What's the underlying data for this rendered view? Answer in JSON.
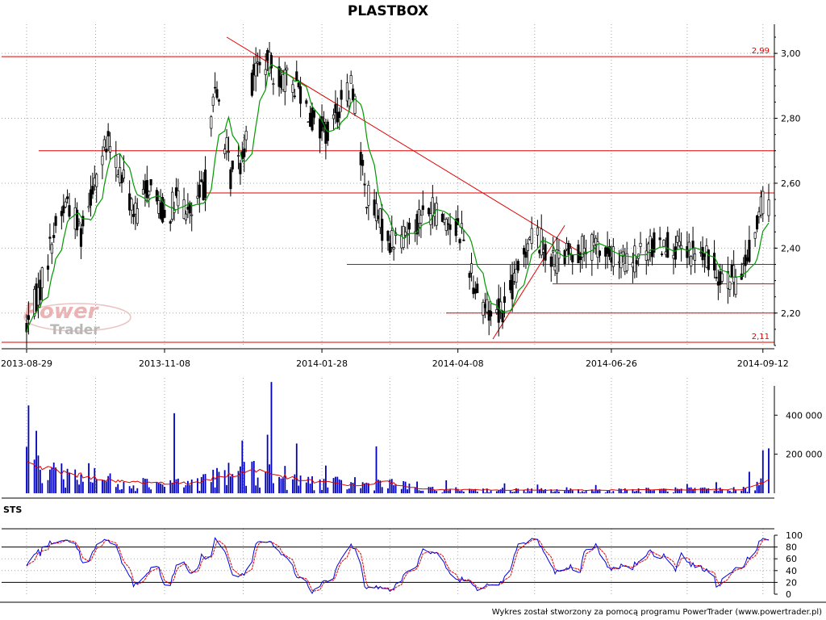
{
  "footer_text": "Wykres został stworzony za pomocą programu PowerTrader (www.powertrader.pl)",
  "logo": {
    "line1": "Power",
    "line2": "Trader",
    "color": "#e05050"
  },
  "colors": {
    "candle": "#000000",
    "sma": "#009900",
    "level": "#e00000",
    "volume": "#0000c0",
    "volume_avg": "#e00000",
    "stoch_k": "#0000e0",
    "stoch_d": "#e00000"
  },
  "chart_data": [
    {
      "type": "candlestick",
      "title": "PLASTBOX",
      "x_tick_labels": [
        "2013-08-29",
        "2013-11-08",
        "2014-01-28",
        "2014-04-08",
        "2014-06-26",
        "2014-09-12"
      ],
      "x_range": [
        "2013-08-29",
        "2014-09-15"
      ],
      "ylim": [
        2.1,
        3.05
      ],
      "y_ticks": [
        2.2,
        2.4,
        2.6,
        2.8,
        3.0
      ],
      "y_tick_labels": [
        "2,20",
        "2,40",
        "2,60",
        "2,80",
        "3,00"
      ],
      "grid": true,
      "horizontal_levels": [
        {
          "value": 2.99,
          "label": "2,99"
        },
        {
          "value": 2.7,
          "label": ""
        },
        {
          "value": 2.57,
          "label": ""
        },
        {
          "value": 2.35,
          "label": ""
        },
        {
          "value": 2.29,
          "label": ""
        },
        {
          "value": 2.2,
          "label": ""
        },
        {
          "value": 2.11,
          "label": "2,11"
        }
      ],
      "trend_lines": [
        {
          "from": [
            "2013-12-10",
            3.05
          ],
          "to": [
            "2014-06-12",
            2.38
          ]
        },
        {
          "from": [
            "2014-04-26",
            2.12
          ],
          "to": [
            "2014-06-02",
            2.47
          ]
        }
      ],
      "anchors": [
        [
          "2013-08-29",
          2.16
        ],
        [
          "2013-09-05",
          2.28
        ],
        [
          "2013-09-12",
          2.45
        ],
        [
          "2013-09-19",
          2.55
        ],
        [
          "2013-09-26",
          2.45
        ],
        [
          "2013-10-03",
          2.62
        ],
        [
          "2013-10-10",
          2.72
        ],
        [
          "2013-10-17",
          2.62
        ],
        [
          "2013-10-24",
          2.5
        ],
        [
          "2013-10-31",
          2.6
        ],
        [
          "2013-11-08",
          2.5
        ],
        [
          "2013-11-15",
          2.55
        ],
        [
          "2013-11-22",
          2.5
        ],
        [
          "2013-11-29",
          2.6
        ],
        [
          "2013-12-03",
          2.88
        ],
        [
          "2013-12-06",
          2.85
        ],
        [
          "2013-12-12",
          2.62
        ],
        [
          "2013-12-18",
          2.68
        ],
        [
          "2013-12-24",
          2.95
        ],
        [
          "2013-12-30",
          2.97
        ],
        [
          "2014-01-08",
          2.92
        ],
        [
          "2014-01-16",
          2.9
        ],
        [
          "2014-01-24",
          2.78
        ],
        [
          "2014-01-31",
          2.75
        ],
        [
          "2014-02-07",
          2.85
        ],
        [
          "2014-02-13",
          2.9
        ],
        [
          "2014-02-19",
          2.58
        ],
        [
          "2014-02-25",
          2.5
        ],
        [
          "2014-03-04",
          2.42
        ],
        [
          "2014-03-12",
          2.45
        ],
        [
          "2014-03-20",
          2.5
        ],
        [
          "2014-03-27",
          2.52
        ],
        [
          "2014-04-04",
          2.48
        ],
        [
          "2014-04-10",
          2.45
        ],
        [
          "2014-04-16",
          2.3
        ],
        [
          "2014-04-24",
          2.2
        ],
        [
          "2014-05-02",
          2.22
        ],
        [
          "2014-05-09",
          2.32
        ],
        [
          "2014-05-15",
          2.45
        ],
        [
          "2014-05-21",
          2.42
        ],
        [
          "2014-05-27",
          2.36
        ],
        [
          "2014-06-04",
          2.38
        ],
        [
          "2014-06-12",
          2.4
        ],
        [
          "2014-06-20",
          2.4
        ],
        [
          "2014-06-26",
          2.37
        ],
        [
          "2014-07-05",
          2.35
        ],
        [
          "2014-07-15",
          2.4
        ],
        [
          "2014-07-24",
          2.42
        ],
        [
          "2014-08-02",
          2.38
        ],
        [
          "2014-08-11",
          2.38
        ],
        [
          "2014-08-20",
          2.33
        ],
        [
          "2014-08-29",
          2.3
        ],
        [
          "2014-09-05",
          2.38
        ],
        [
          "2014-09-12",
          2.55
        ],
        [
          "2014-09-15",
          2.52
        ]
      ]
    },
    {
      "type": "bar",
      "name": "volume",
      "ylim": [
        0,
        550000
      ],
      "y_ticks": [
        200000,
        400000
      ],
      "y_tick_labels": [
        "200 000",
        "400 000"
      ],
      "spikes": [
        [
          "2013-08-30",
          450000
        ],
        [
          "2013-09-03",
          320000
        ],
        [
          "2013-11-13",
          410000
        ],
        [
          "2013-12-18",
          270000
        ],
        [
          "2014-01-02",
          570000
        ],
        [
          "2014-02-25",
          240000
        ],
        [
          "2014-09-05",
          110000
        ],
        [
          "2014-09-12",
          220000
        ],
        [
          "2014-09-15",
          230000
        ]
      ],
      "average_line": [
        [
          "2013-08-29",
          150000
        ],
        [
          "2013-09-20",
          100000
        ],
        [
          "2013-10-15",
          60000
        ],
        [
          "2013-11-20",
          50000
        ],
        [
          "2013-12-10",
          90000
        ],
        [
          "2013-12-25",
          120000
        ],
        [
          "2014-01-15",
          70000
        ],
        [
          "2014-02-15",
          40000
        ],
        [
          "2014-03-01",
          60000
        ],
        [
          "2014-03-20",
          20000
        ],
        [
          "2014-06-01",
          15000
        ],
        [
          "2014-09-01",
          20000
        ],
        [
          "2014-09-15",
          70000
        ]
      ]
    },
    {
      "type": "line",
      "title": "STS",
      "ylim": [
        0,
        100
      ],
      "y_ticks": [
        0,
        20,
        40,
        60,
        80,
        100
      ],
      "y_tick_labels": [
        "0",
        "20",
        "40",
        "60",
        "80",
        "100"
      ],
      "reference_lines": [
        20,
        80
      ]
    }
  ]
}
